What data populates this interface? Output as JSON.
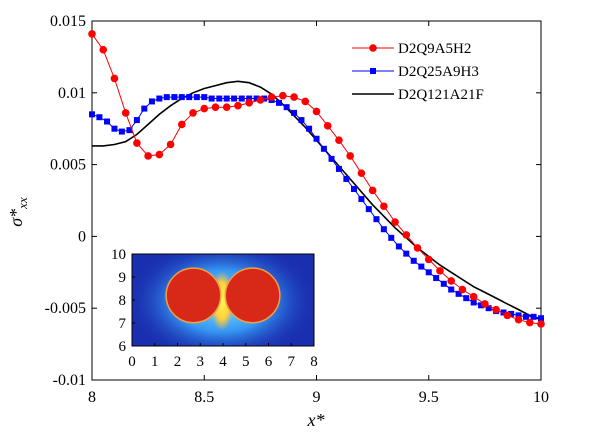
{
  "chart_data": {
    "type": "line",
    "xlabel": "x*",
    "ylabel": "σ*xx",
    "xlim": [
      8,
      10
    ],
    "ylim": [
      -0.01,
      0.015
    ],
    "x_ticks": [
      8,
      8.5,
      9,
      9.5,
      10
    ],
    "x_tick_labels": [
      "8",
      "8.5",
      "9",
      "9.5",
      "10"
    ],
    "y_ticks": [
      -0.01,
      -0.005,
      0,
      0.005,
      0.01,
      0.015
    ],
    "y_tick_labels": [
      "-0.01",
      "-0.005",
      "0",
      "0.005",
      "0.01",
      "0.015"
    ],
    "grid": false,
    "legend_position": "top-right",
    "series": [
      {
        "name": "D2Q9A5H2",
        "color": "#ff0000",
        "marker": "circle",
        "x": [
          8.0,
          8.05,
          8.1,
          8.15,
          8.2,
          8.25,
          8.3,
          8.35,
          8.4,
          8.45,
          8.5,
          8.55,
          8.6,
          8.65,
          8.7,
          8.75,
          8.8,
          8.85,
          8.9,
          8.95,
          9.0,
          9.05,
          9.1,
          9.15,
          9.2,
          9.25,
          9.3,
          9.35,
          9.4,
          9.45,
          9.5,
          9.55,
          9.6,
          9.65,
          9.7,
          9.75,
          9.8,
          9.85,
          9.9,
          9.95,
          10.0
        ],
        "y": [
          0.0141,
          0.013,
          0.011,
          0.0086,
          0.0065,
          0.0056,
          0.0057,
          0.0064,
          0.0078,
          0.0086,
          0.0089,
          0.009,
          0.009,
          0.0091,
          0.0093,
          0.0095,
          0.0097,
          0.0098,
          0.0097,
          0.0094,
          0.0087,
          0.0077,
          0.0067,
          0.0056,
          0.0044,
          0.0032,
          0.0021,
          0.001,
          0.0001,
          -0.0008,
          -0.0016,
          -0.0024,
          -0.0031,
          -0.0037,
          -0.0042,
          -0.0047,
          -0.0051,
          -0.0055,
          -0.0058,
          -0.006,
          -0.0061
        ]
      },
      {
        "name": "D2Q25A9H3",
        "color": "#0000ff",
        "marker": "square",
        "x": [
          8.0,
          8.033,
          8.067,
          8.1,
          8.133,
          8.167,
          8.2,
          8.233,
          8.267,
          8.3,
          8.333,
          8.367,
          8.4,
          8.433,
          8.467,
          8.5,
          8.533,
          8.567,
          8.6,
          8.633,
          8.667,
          8.7,
          8.733,
          8.767,
          8.8,
          8.833,
          8.867,
          8.9,
          8.933,
          8.967,
          9.0,
          9.033,
          9.067,
          9.1,
          9.133,
          9.167,
          9.2,
          9.233,
          9.267,
          9.3,
          9.333,
          9.367,
          9.4,
          9.433,
          9.467,
          9.5,
          9.533,
          9.567,
          9.6,
          9.633,
          9.667,
          9.7,
          9.733,
          9.767,
          9.8,
          9.833,
          9.867,
          9.9,
          9.933,
          9.967,
          10.0
        ],
        "y": [
          0.0085,
          0.0083,
          0.008,
          0.0075,
          0.0073,
          0.0074,
          0.0081,
          0.0089,
          0.0094,
          0.0096,
          0.0097,
          0.0097,
          0.0097,
          0.0097,
          0.0097,
          0.0097,
          0.0096,
          0.0096,
          0.0096,
          0.0096,
          0.0096,
          0.0096,
          0.0096,
          0.0096,
          0.0095,
          0.0093,
          0.009,
          0.0086,
          0.0081,
          0.0075,
          0.0068,
          0.0061,
          0.0054,
          0.0047,
          0.004,
          0.0033,
          0.0026,
          0.0019,
          0.0012,
          0.0005,
          -0.0001,
          -0.0007,
          -0.0012,
          -0.0017,
          -0.0021,
          -0.0025,
          -0.0029,
          -0.0033,
          -0.0037,
          -0.004,
          -0.0043,
          -0.0046,
          -0.0048,
          -0.005,
          -0.0052,
          -0.0053,
          -0.0054,
          -0.0055,
          -0.0056,
          -0.0056,
          -0.0057
        ]
      },
      {
        "name": "D2Q121A21F",
        "color": "#000000",
        "marker": "none",
        "x": [
          8.0,
          8.05,
          8.1,
          8.15,
          8.2,
          8.25,
          8.3,
          8.35,
          8.4,
          8.45,
          8.5,
          8.55,
          8.6,
          8.65,
          8.7,
          8.75,
          8.8,
          8.85,
          8.9,
          8.95,
          9.0,
          9.05,
          9.1,
          9.15,
          9.2,
          9.25,
          9.3,
          9.35,
          9.4,
          9.45,
          9.5,
          9.55,
          9.6,
          9.65,
          9.7,
          9.75,
          9.8,
          9.85,
          9.9,
          9.95,
          10.0
        ],
        "y": [
          0.0063,
          0.0063,
          0.0064,
          0.0066,
          0.0071,
          0.0078,
          0.0085,
          0.0091,
          0.0096,
          0.01,
          0.0103,
          0.0105,
          0.0107,
          0.0108,
          0.0107,
          0.0104,
          0.0099,
          0.0092,
          0.0084,
          0.0076,
          0.0067,
          0.0058,
          0.0049,
          0.004,
          0.0031,
          0.0022,
          0.0014,
          0.0006,
          -0.0001,
          -0.0008,
          -0.0014,
          -0.002,
          -0.0025,
          -0.003,
          -0.0035,
          -0.0039,
          -0.0043,
          -0.0047,
          -0.0051,
          -0.0055,
          -0.0058
        ]
      }
    ],
    "inset": {
      "type": "heatmap",
      "xlim": [
        0,
        8
      ],
      "ylim": [
        6,
        10
      ],
      "x_tick_labels": [
        "0",
        "1",
        "2",
        "3",
        "4",
        "5",
        "6",
        "7",
        "8"
      ],
      "y_tick_labels": [
        "6",
        "7",
        "8",
        "9",
        "10"
      ],
      "colors": {
        "background": "#1a2fb0",
        "glow": "#6fd8ff",
        "bridge": "#ffe83a",
        "particle": "#d82818",
        "particle_edge": "#f0a040"
      },
      "particles": [
        {
          "cx": 2.7,
          "cy": 8.2,
          "r": 1.2
        },
        {
          "cx": 5.3,
          "cy": 8.2,
          "r": 1.2
        }
      ]
    }
  }
}
